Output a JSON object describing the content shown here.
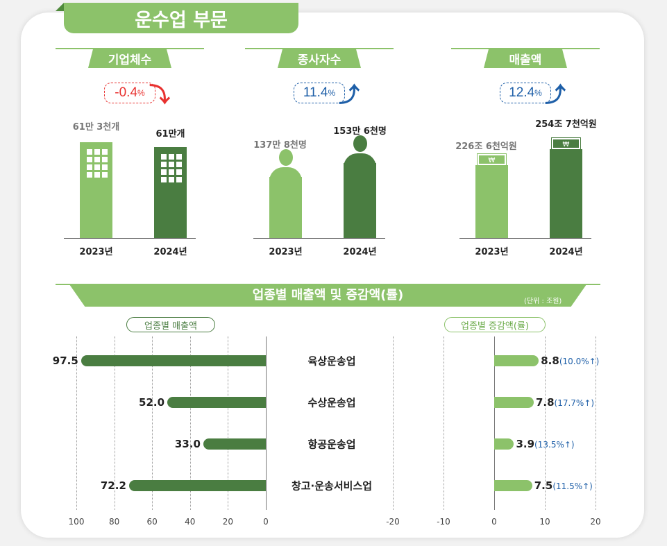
{
  "title": "운수업 부문",
  "colors": {
    "light_green": "#8cc26a",
    "dark_green": "#4a7d41",
    "red": "#e8312f",
    "blue": "#1e5fa8"
  },
  "kpis": [
    {
      "label": "기업체수",
      "change": "-0.4",
      "change_unit": "%",
      "direction": "down",
      "icon": "building-icon",
      "values": [
        {
          "year": "2023년",
          "text": "61만 3천개",
          "value": 61.3
        },
        {
          "year": "2024년",
          "text": "61만개",
          "value": 61.0
        }
      ]
    },
    {
      "label": "종사자수",
      "change": "11.4",
      "change_unit": "%",
      "direction": "up",
      "icon": "person-icon",
      "values": [
        {
          "year": "2023년",
          "text": "137만 8천명",
          "value": 137.8
        },
        {
          "year": "2024년",
          "text": "153만 6천명",
          "value": 153.6
        }
      ]
    },
    {
      "label": "매출액",
      "change": "12.4",
      "change_unit": "%",
      "direction": "up",
      "icon": "money-icon",
      "values": [
        {
          "year": "2023년",
          "text": "226조 6천억원",
          "value": 226.6
        },
        {
          "year": "2024년",
          "text": "254조 7천억원",
          "value": 254.7
        }
      ]
    }
  ],
  "section_title": "업종별 매출액 및 증감액(률)",
  "unit": "(단위 : 조원)",
  "chart_data": [
    {
      "type": "bar",
      "orientation": "horizontal",
      "title": "업종별 매출액",
      "categories": [
        "육상운송업",
        "수상운송업",
        "항공운송업",
        "창고·운송서비스업"
      ],
      "values": [
        97.5,
        52.0,
        33.0,
        72.2
      ],
      "value_labels": [
        "97.5",
        "52.0",
        "33.0",
        "72.2"
      ],
      "xlim": [
        100,
        0
      ],
      "ticks": [
        "100",
        "80",
        "60",
        "40",
        "20",
        "0"
      ],
      "grid": true
    },
    {
      "type": "bar",
      "orientation": "horizontal",
      "title": "업종별 증감액(률)",
      "categories": [
        "육상운송업",
        "수상운송업",
        "항공운송업",
        "창고·운송서비스업"
      ],
      "values": [
        8.8,
        7.8,
        3.9,
        7.5
      ],
      "value_labels": [
        "8.8",
        "7.8",
        "3.9",
        "7.5"
      ],
      "rates": [
        "(10.0%↑)",
        "(17.7%↑)",
        "(13.5%↑)",
        "(11.5%↑)"
      ],
      "xlim": [
        -20,
        20
      ],
      "ticks": [
        "-20",
        "-10",
        "0",
        "10",
        "20"
      ],
      "grid": true
    }
  ]
}
